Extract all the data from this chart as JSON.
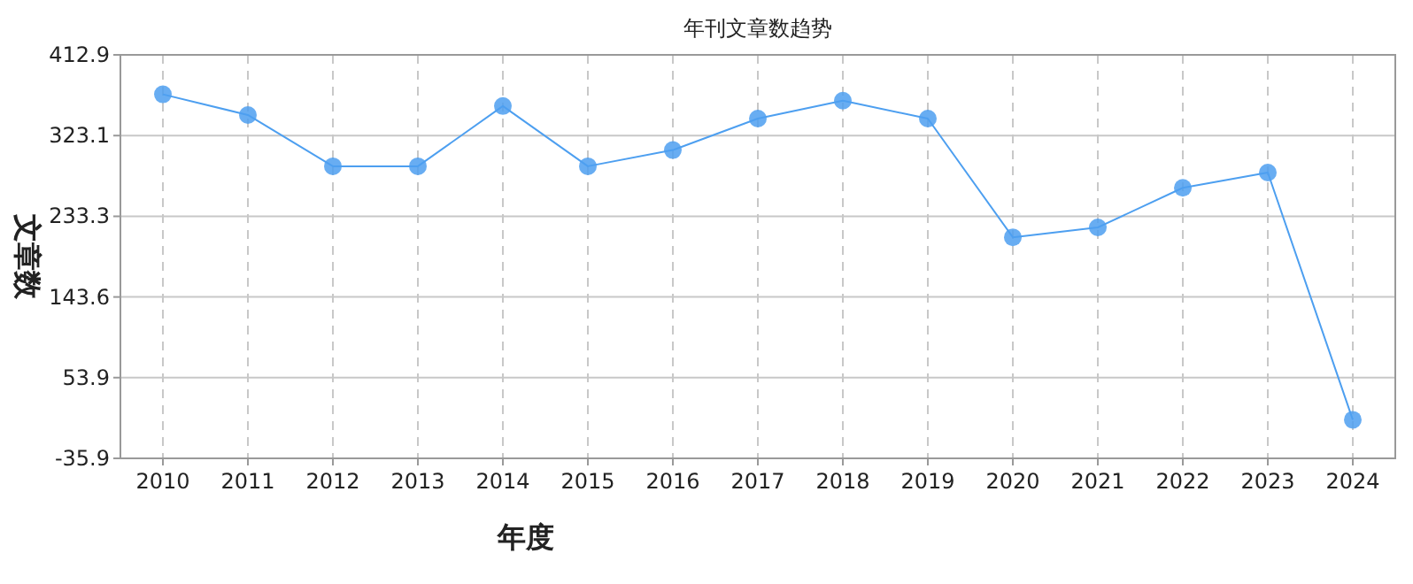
{
  "chart_data": {
    "type": "line",
    "title": "年刊文章数趋势",
    "xlabel": "年度",
    "ylabel": "文章数",
    "categories": [
      "2010",
      "2011",
      "2012",
      "2013",
      "2014",
      "2015",
      "2016",
      "2017",
      "2018",
      "2019",
      "2020",
      "2021",
      "2022",
      "2023",
      "2024"
    ],
    "series": [
      {
        "color": "#4d9ff0",
        "values": [
          369,
          346,
          289,
          289,
          356,
          289,
          307,
          342,
          362,
          342,
          210,
          221,
          265,
          282,
          7
        ]
      }
    ],
    "ylim": [
      -35.9,
      412.9
    ],
    "yticks": [
      -35.9,
      53.9,
      143.6,
      233.3,
      323.1,
      412.9
    ],
    "grid": true,
    "marker": "circle",
    "line_style": "solid"
  }
}
